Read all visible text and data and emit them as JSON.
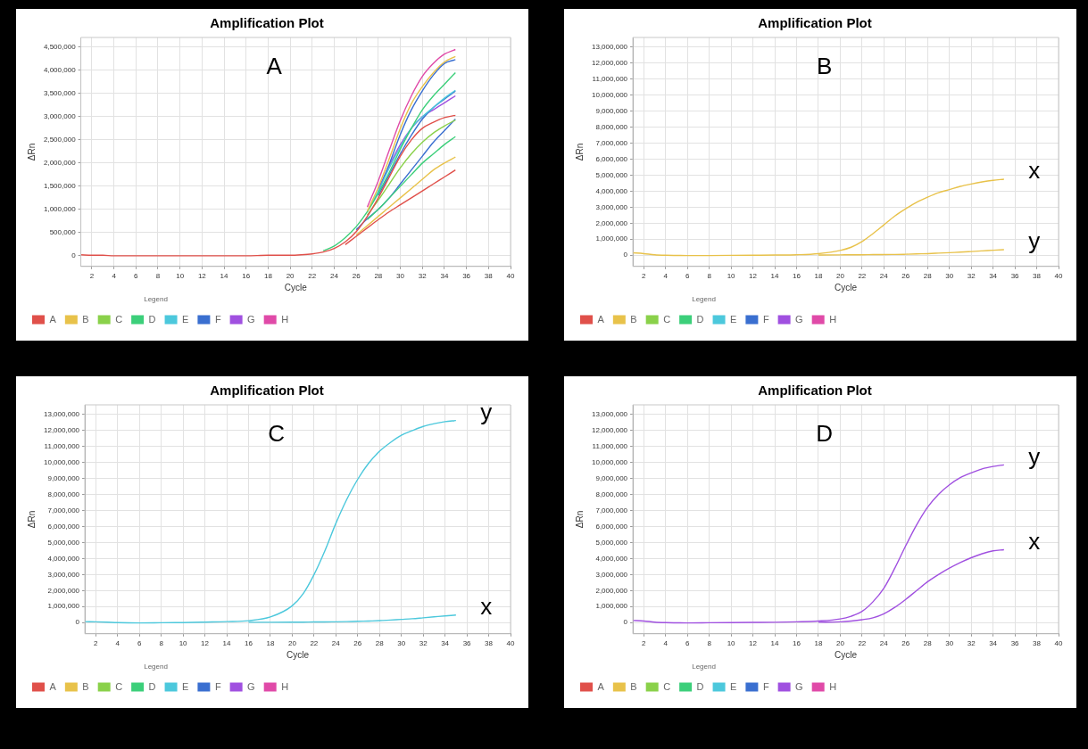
{
  "chart_data": [
    {
      "type": "line",
      "title": "Amplification Plot",
      "xlabel": "Cycle",
      "ylabel": "ΔRn",
      "legend_title": "Legend",
      "legend": "bottom",
      "grid": true,
      "x": [
        1,
        2,
        3,
        4,
        6,
        8,
        10,
        12,
        14,
        16,
        18,
        20,
        21,
        22,
        23,
        24,
        25,
        26,
        27,
        28,
        29,
        30,
        31,
        32,
        33,
        34,
        35
      ],
      "xlim": [
        1,
        40
      ],
      "xticks": [
        2,
        4,
        6,
        8,
        10,
        12,
        14,
        16,
        18,
        20,
        22,
        24,
        26,
        28,
        30,
        32,
        34,
        36,
        38,
        40
      ],
      "ylim": [
        -230000,
        4710000
      ],
      "yticks": [
        {
          "value": 0,
          "label": "0"
        },
        {
          "value": 500000,
          "label": "500,000"
        },
        {
          "value": 1000000,
          "label": "1,000,000"
        },
        {
          "value": 1500000,
          "label": "1,500,000"
        },
        {
          "value": 2000000,
          "label": "2,000,000"
        },
        {
          "value": 2500000,
          "label": "2,500,000"
        },
        {
          "value": 3000000,
          "label": "3,000,000"
        },
        {
          "value": 3500000,
          "label": "3,500,000"
        },
        {
          "value": 4000000,
          "label": "4,000,000"
        },
        {
          "value": 4500000,
          "label": "4,500,000"
        }
      ],
      "annotations": [
        "A"
      ],
      "series": [
        {
          "name": "A",
          "color": "#e0504a",
          "values": [
            20000,
            10000,
            10000,
            0,
            0,
            0,
            0,
            0,
            0,
            0,
            10000,
            10000,
            20000,
            40000,
            80000,
            160000,
            300000,
            520000,
            850000,
            1250000,
            1700000,
            2150000,
            2500000,
            2750000,
            2880000,
            2980000,
            3030000
          ]
        },
        {
          "color": "#e0504a",
          "values": [
            null,
            null,
            null,
            null,
            null,
            null,
            null,
            null,
            null,
            null,
            null,
            null,
            null,
            null,
            null,
            null,
            240000,
            420000,
            600000,
            780000,
            950000,
            1100000,
            1250000,
            1400000,
            1550000,
            1700000,
            1850000
          ]
        },
        {
          "name": "B",
          "color": "#e8c24a",
          "values": [
            null,
            null,
            null,
            null,
            null,
            null,
            null,
            null,
            null,
            null,
            null,
            null,
            null,
            null,
            null,
            null,
            null,
            null,
            960000,
            1480000,
            2100000,
            2750000,
            3280000,
            3650000,
            3950000,
            4180000,
            4300000
          ]
        },
        {
          "color": "#e8c24a",
          "values": [
            null,
            null,
            null,
            null,
            null,
            null,
            null,
            null,
            null,
            null,
            null,
            null,
            null,
            null,
            null,
            null,
            null,
            450000,
            650000,
            850000,
            1050000,
            1250000,
            1450000,
            1650000,
            1850000,
            2000000,
            2130000
          ]
        },
        {
          "name": "C",
          "color": "#8ad14a",
          "values": [
            null,
            null,
            null,
            null,
            null,
            null,
            null,
            null,
            null,
            null,
            null,
            null,
            null,
            null,
            null,
            null,
            null,
            null,
            880000,
            1200000,
            1550000,
            1900000,
            2200000,
            2450000,
            2650000,
            2800000,
            2930000
          ]
        },
        {
          "name": "D",
          "color": "#3ccf7a",
          "values": [
            null,
            null,
            null,
            null,
            null,
            null,
            null,
            null,
            null,
            null,
            null,
            null,
            null,
            null,
            110000,
            210000,
            390000,
            630000,
            950000,
            1350000,
            1800000,
            2300000,
            2750000,
            3150000,
            3450000,
            3700000,
            3950000
          ]
        },
        {
          "color": "#3ccf7a",
          "values": [
            null,
            null,
            null,
            null,
            null,
            null,
            null,
            null,
            null,
            null,
            null,
            null,
            null,
            null,
            null,
            null,
            null,
            null,
            780000,
            1000000,
            1250000,
            1500000,
            1750000,
            2000000,
            2200000,
            2400000,
            2570000
          ]
        },
        {
          "name": "E",
          "color": "#4cc8dc",
          "values": [
            null,
            null,
            null,
            null,
            null,
            null,
            null,
            null,
            null,
            null,
            null,
            null,
            null,
            null,
            null,
            null,
            null,
            null,
            950000,
            1400000,
            1900000,
            2350000,
            2750000,
            3000000,
            3200000,
            3400000,
            3570000
          ]
        },
        {
          "name": "F",
          "color": "#3a6fd0",
          "values": [
            null,
            null,
            null,
            null,
            null,
            null,
            null,
            null,
            null,
            null,
            null,
            null,
            null,
            null,
            null,
            null,
            null,
            null,
            null,
            1380000,
            1980000,
            2620000,
            3150000,
            3560000,
            3900000,
            4150000,
            4230000
          ]
        },
        {
          "color": "#3a6fd0",
          "values": [
            null,
            null,
            null,
            null,
            null,
            null,
            null,
            null,
            null,
            null,
            null,
            null,
            null,
            null,
            null,
            null,
            null,
            null,
            null,
            1300000,
            1750000,
            2200000,
            2600000,
            2950000,
            3200000,
            3380000,
            3550000
          ]
        },
        {
          "color": "#3a6fd0",
          "values": [
            null,
            null,
            null,
            null,
            null,
            null,
            null,
            null,
            null,
            null,
            null,
            null,
            null,
            null,
            null,
            null,
            null,
            560000,
            800000,
            1000000,
            1250000,
            1550000,
            1850000,
            2150000,
            2450000,
            2700000,
            2950000
          ]
        },
        {
          "name": "G",
          "color": "#a050e0",
          "values": [
            null,
            null,
            null,
            null,
            null,
            null,
            null,
            null,
            null,
            null,
            null,
            null,
            null,
            null,
            null,
            null,
            null,
            null,
            null,
            1450000,
            1950000,
            2400000,
            2750000,
            3000000,
            3150000,
            3300000,
            3450000
          ]
        },
        {
          "name": "H",
          "color": "#e04aa8",
          "values": [
            null,
            null,
            null,
            null,
            null,
            null,
            null,
            null,
            null,
            null,
            null,
            null,
            null,
            null,
            null,
            null,
            null,
            null,
            1050000,
            1620000,
            2280000,
            2920000,
            3450000,
            3870000,
            4150000,
            4350000,
            4450000
          ]
        }
      ]
    },
    {
      "type": "line",
      "title": "Amplification Plot",
      "xlabel": "Cycle",
      "ylabel": "ΔRn",
      "legend_title": "Legend",
      "legend": "bottom",
      "grid": true,
      "x": [
        1,
        2,
        3,
        4,
        6,
        8,
        10,
        12,
        14,
        16,
        18,
        20,
        21,
        22,
        23,
        24,
        25,
        26,
        27,
        28,
        29,
        30,
        31,
        32,
        33,
        34,
        35
      ],
      "xlim": [
        1,
        40
      ],
      "xticks": [
        2,
        4,
        6,
        8,
        10,
        12,
        14,
        16,
        18,
        20,
        22,
        24,
        26,
        28,
        30,
        32,
        34,
        36,
        38,
        40
      ],
      "ylim": [
        -700000,
        13600000
      ],
      "yticks": [
        {
          "value": 0,
          "label": "0"
        },
        {
          "value": 1000000,
          "label": "1,000,000"
        },
        {
          "value": 2000000,
          "label": "2,000,000"
        },
        {
          "value": 3000000,
          "label": "3,000,000"
        },
        {
          "value": 4000000,
          "label": "4,000,000"
        },
        {
          "value": 5000000,
          "label": "5,000,000"
        },
        {
          "value": 6000000,
          "label": "6,000,000"
        },
        {
          "value": 7000000,
          "label": "7,000,000"
        },
        {
          "value": 8000000,
          "label": "8,000,000"
        },
        {
          "value": 9000000,
          "label": "9,000,000"
        },
        {
          "value": 10000000,
          "label": "10,000,000"
        },
        {
          "value": 11000000,
          "label": "11,000,000"
        },
        {
          "value": 12000000,
          "label": "12,000,000"
        },
        {
          "value": 13000000,
          "label": "13,000,000"
        }
      ],
      "annotations": [
        "B"
      ],
      "series": [
        {
          "name": "A",
          "color": "#e0504a",
          "values": [
            null,
            null,
            null,
            null,
            null,
            null,
            null,
            null,
            null,
            null,
            null,
            null,
            null,
            null,
            null,
            null,
            null,
            null,
            null,
            null,
            null,
            null,
            null,
            null,
            null,
            null,
            null
          ]
        },
        {
          "name": "B",
          "color": "#e8c24a",
          "values": [
            null,
            null,
            null,
            null,
            null,
            null,
            null,
            null,
            null,
            null,
            null,
            null,
            null,
            null,
            null,
            null,
            null,
            null,
            null,
            null,
            null,
            null,
            null,
            null,
            null,
            null,
            null
          ]
        },
        {
          "name": "C",
          "color": "#8ad14a",
          "values": [
            null,
            null,
            null,
            null,
            null,
            null,
            null,
            null,
            null,
            null,
            null,
            null,
            null,
            null,
            null,
            null,
            null,
            null,
            null,
            null,
            null,
            null,
            null,
            null,
            null,
            null,
            null
          ]
        },
        {
          "name": "D",
          "color": "#3ccf7a",
          "values": [
            null,
            null,
            null,
            null,
            null,
            null,
            null,
            null,
            null,
            null,
            null,
            null,
            null,
            null,
            null,
            null,
            null,
            null,
            null,
            null,
            null,
            null,
            null,
            null,
            null,
            null,
            null
          ]
        },
        {
          "name": "E",
          "color": "#4cc8dc",
          "values": [
            null,
            null,
            null,
            null,
            null,
            null,
            null,
            null,
            null,
            null,
            null,
            null,
            null,
            null,
            null,
            null,
            null,
            null,
            null,
            null,
            null,
            null,
            null,
            null,
            null,
            null,
            null
          ]
        },
        {
          "name": "F",
          "color": "#3a6fd0",
          "values": [
            null,
            null,
            null,
            null,
            null,
            null,
            null,
            null,
            null,
            null,
            null,
            null,
            null,
            null,
            null,
            null,
            null,
            null,
            null,
            null,
            null,
            null,
            null,
            null,
            null,
            null,
            null
          ]
        },
        {
          "name": "G",
          "color": "#a050e0",
          "values": [
            null,
            null,
            null,
            null,
            null,
            null,
            null,
            null,
            null,
            null,
            null,
            null,
            null,
            null,
            null,
            null,
            null,
            null,
            null,
            null,
            null,
            null,
            null,
            null,
            null,
            null,
            null
          ]
        },
        {
          "name": "H",
          "color": "#e04aa8",
          "values": [
            null,
            null,
            null,
            null,
            null,
            null,
            null,
            null,
            null,
            null,
            null,
            null,
            null,
            null,
            null,
            null,
            null,
            null,
            null,
            null,
            null,
            null,
            null,
            null,
            null,
            null,
            null
          ]
        },
        {
          "name": "x",
          "color": "#e8c24a",
          "values": [
            150000,
            100000,
            30000,
            0,
            -20000,
            -20000,
            -10000,
            0,
            10000,
            30000,
            100000,
            300000,
            500000,
            850000,
            1350000,
            1900000,
            2450000,
            2900000,
            3300000,
            3620000,
            3900000,
            4100000,
            4300000,
            4450000,
            4580000,
            4680000,
            4750000
          ]
        },
        {
          "name": "y",
          "color": "#e8c24a",
          "values": [
            null,
            null,
            null,
            null,
            null,
            null,
            null,
            null,
            null,
            null,
            10000,
            20000,
            30000,
            30000,
            40000,
            40000,
            50000,
            60000,
            80000,
            100000,
            130000,
            160000,
            190000,
            230000,
            270000,
            310000,
            350000
          ]
        }
      ]
    },
    {
      "type": "line",
      "title": "Amplification Plot",
      "xlabel": "Cycle",
      "ylabel": "ΔRn",
      "legend_title": "Legend",
      "legend": "bottom",
      "grid": true,
      "x": [
        1,
        2,
        3,
        4,
        6,
        8,
        10,
        12,
        14,
        16,
        18,
        20,
        21,
        22,
        23,
        24,
        25,
        26,
        27,
        28,
        29,
        30,
        31,
        32,
        33,
        34,
        35
      ],
      "xlim": [
        1,
        40
      ],
      "xticks": [
        2,
        4,
        6,
        8,
        10,
        12,
        14,
        16,
        18,
        20,
        22,
        24,
        26,
        28,
        30,
        32,
        34,
        36,
        38,
        40
      ],
      "ylim": [
        -700000,
        13600000
      ],
      "yticks": [
        {
          "value": 0,
          "label": "0"
        },
        {
          "value": 1000000,
          "label": "1,000,000"
        },
        {
          "value": 2000000,
          "label": "2,000,000"
        },
        {
          "value": 3000000,
          "label": "3,000,000"
        },
        {
          "value": 4000000,
          "label": "4,000,000"
        },
        {
          "value": 5000000,
          "label": "5,000,000"
        },
        {
          "value": 6000000,
          "label": "6,000,000"
        },
        {
          "value": 7000000,
          "label": "7,000,000"
        },
        {
          "value": 8000000,
          "label": "8,000,000"
        },
        {
          "value": 9000000,
          "label": "9,000,000"
        },
        {
          "value": 10000000,
          "label": "10,000,000"
        },
        {
          "value": 11000000,
          "label": "11,000,000"
        },
        {
          "value": 12000000,
          "label": "12,000,000"
        },
        {
          "value": 13000000,
          "label": "13,000,000"
        }
      ],
      "annotations": [
        "C"
      ],
      "series": [
        {
          "name": "A",
          "color": "#e0504a",
          "values": [
            null,
            null,
            null,
            null,
            null,
            null,
            null,
            null,
            null,
            null,
            null,
            null,
            null,
            null,
            null,
            null,
            null,
            null,
            null,
            null,
            null,
            null,
            null,
            null,
            null,
            null,
            null
          ]
        },
        {
          "name": "B",
          "color": "#e8c24a",
          "values": [
            null,
            null,
            null,
            null,
            null,
            null,
            null,
            null,
            null,
            null,
            null,
            null,
            null,
            null,
            null,
            null,
            null,
            null,
            null,
            null,
            null,
            null,
            null,
            null,
            null,
            null,
            null
          ]
        },
        {
          "name": "C",
          "color": "#8ad14a",
          "values": [
            null,
            null,
            null,
            null,
            null,
            null,
            null,
            null,
            null,
            null,
            null,
            null,
            null,
            null,
            null,
            null,
            null,
            null,
            null,
            null,
            null,
            null,
            null,
            null,
            null,
            null,
            null
          ]
        },
        {
          "name": "D",
          "color": "#3ccf7a",
          "values": [
            null,
            null,
            null,
            null,
            null,
            null,
            null,
            null,
            null,
            null,
            null,
            null,
            null,
            null,
            null,
            null,
            null,
            null,
            null,
            null,
            null,
            null,
            null,
            null,
            null,
            null,
            null
          ]
        },
        {
          "name": "E",
          "color": "#4cc8dc",
          "values": [
            null,
            null,
            null,
            null,
            null,
            null,
            null,
            null,
            null,
            null,
            null,
            null,
            null,
            null,
            null,
            null,
            null,
            null,
            null,
            null,
            null,
            null,
            null,
            null,
            null,
            null,
            null
          ]
        },
        {
          "name": "F",
          "color": "#3a6fd0",
          "values": [
            null,
            null,
            null,
            null,
            null,
            null,
            null,
            null,
            null,
            null,
            null,
            null,
            null,
            null,
            null,
            null,
            null,
            null,
            null,
            null,
            null,
            null,
            null,
            null,
            null,
            null,
            null
          ]
        },
        {
          "name": "G",
          "color": "#a050e0",
          "values": [
            null,
            null,
            null,
            null,
            null,
            null,
            null,
            null,
            null,
            null,
            null,
            null,
            null,
            null,
            null,
            null,
            null,
            null,
            null,
            null,
            null,
            null,
            null,
            null,
            null,
            null,
            null
          ]
        },
        {
          "name": "H",
          "color": "#e04aa8",
          "values": [
            null,
            null,
            null,
            null,
            null,
            null,
            null,
            null,
            null,
            null,
            null,
            null,
            null,
            null,
            null,
            null,
            null,
            null,
            null,
            null,
            null,
            null,
            null,
            null,
            null,
            null,
            null
          ]
        },
        {
          "name": "y",
          "color": "#4cc8dc",
          "values": [
            60000,
            50000,
            30000,
            0,
            -20000,
            -10000,
            0,
            30000,
            60000,
            120000,
            350000,
            1050000,
            1800000,
            3000000,
            4500000,
            6200000,
            7700000,
            8950000,
            9950000,
            10700000,
            11250000,
            11700000,
            11990000,
            12250000,
            12420000,
            12550000,
            12620000
          ]
        },
        {
          "name": "x",
          "color": "#4cc8dc",
          "values": [
            null,
            null,
            null,
            null,
            null,
            null,
            null,
            null,
            null,
            20000,
            20000,
            30000,
            30000,
            40000,
            40000,
            50000,
            60000,
            80000,
            100000,
            120000,
            160000,
            200000,
            240000,
            300000,
            360000,
            420000,
            470000
          ]
        }
      ]
    },
    {
      "type": "line",
      "title": "Amplification Plot",
      "xlabel": "Cycle",
      "ylabel": "ΔRn",
      "legend_title": "Legend",
      "legend": "bottom",
      "grid": true,
      "x": [
        1,
        2,
        3,
        4,
        6,
        8,
        10,
        12,
        14,
        16,
        18,
        20,
        21,
        22,
        23,
        24,
        25,
        26,
        27,
        28,
        29,
        30,
        31,
        32,
        33,
        34,
        35
      ],
      "xlim": [
        1,
        40
      ],
      "xticks": [
        2,
        4,
        6,
        8,
        10,
        12,
        14,
        16,
        18,
        20,
        22,
        24,
        26,
        28,
        30,
        32,
        34,
        36,
        38,
        40
      ],
      "ylim": [
        -700000,
        13600000
      ],
      "yticks": [
        {
          "value": 0,
          "label": "0"
        },
        {
          "value": 1000000,
          "label": "1,000,000"
        },
        {
          "value": 2000000,
          "label": "2,000,000"
        },
        {
          "value": 3000000,
          "label": "3,000,000"
        },
        {
          "value": 4000000,
          "label": "4,000,000"
        },
        {
          "value": 5000000,
          "label": "5,000,000"
        },
        {
          "value": 6000000,
          "label": "6,000,000"
        },
        {
          "value": 7000000,
          "label": "7,000,000"
        },
        {
          "value": 8000000,
          "label": "8,000,000"
        },
        {
          "value": 9000000,
          "label": "9,000,000"
        },
        {
          "value": 10000000,
          "label": "10,000,000"
        },
        {
          "value": 11000000,
          "label": "11,000,000"
        },
        {
          "value": 12000000,
          "label": "12,000,000"
        },
        {
          "value": 13000000,
          "label": "13,000,000"
        }
      ],
      "annotations": [
        "D"
      ],
      "series": [
        {
          "name": "A",
          "color": "#e0504a",
          "values": [
            null,
            null,
            null,
            null,
            null,
            null,
            null,
            null,
            null,
            null,
            null,
            null,
            null,
            null,
            null,
            null,
            null,
            null,
            null,
            null,
            null,
            null,
            null,
            null,
            null,
            null,
            null
          ]
        },
        {
          "name": "B",
          "color": "#e8c24a",
          "values": [
            null,
            null,
            null,
            null,
            null,
            null,
            null,
            null,
            null,
            null,
            null,
            null,
            null,
            null,
            null,
            null,
            null,
            null,
            null,
            null,
            null,
            null,
            null,
            null,
            null,
            null,
            null
          ]
        },
        {
          "name": "C",
          "color": "#8ad14a",
          "values": [
            null,
            null,
            null,
            null,
            null,
            null,
            null,
            null,
            null,
            null,
            null,
            null,
            null,
            null,
            null,
            null,
            null,
            null,
            null,
            null,
            null,
            null,
            null,
            null,
            null,
            null,
            null
          ]
        },
        {
          "name": "D",
          "color": "#3ccf7a",
          "values": [
            null,
            null,
            null,
            null,
            null,
            null,
            null,
            null,
            null,
            null,
            null,
            null,
            null,
            null,
            null,
            null,
            null,
            null,
            null,
            null,
            null,
            null,
            null,
            null,
            null,
            null,
            null
          ]
        },
        {
          "name": "E",
          "color": "#4cc8dc",
          "values": [
            null,
            null,
            null,
            null,
            null,
            null,
            null,
            null,
            null,
            null,
            null,
            null,
            null,
            null,
            null,
            null,
            null,
            null,
            null,
            null,
            null,
            null,
            null,
            null,
            null,
            null,
            null
          ]
        },
        {
          "name": "F",
          "color": "#3a6fd0",
          "values": [
            null,
            null,
            null,
            null,
            null,
            null,
            null,
            null,
            null,
            null,
            null,
            null,
            null,
            null,
            null,
            null,
            null,
            null,
            null,
            null,
            null,
            null,
            null,
            null,
            null,
            null,
            null
          ]
        },
        {
          "name": "G",
          "color": "#a050e0",
          "values": [
            null,
            null,
            null,
            null,
            null,
            null,
            null,
            null,
            null,
            null,
            null,
            null,
            null,
            null,
            null,
            null,
            null,
            null,
            null,
            null,
            null,
            null,
            null,
            null,
            null,
            null,
            null
          ]
        },
        {
          "name": "H",
          "color": "#e04aa8",
          "values": [
            null,
            null,
            null,
            null,
            null,
            null,
            null,
            null,
            null,
            null,
            null,
            null,
            null,
            null,
            null,
            null,
            null,
            null,
            null,
            null,
            null,
            null,
            null,
            null,
            null,
            null,
            null
          ]
        },
        {
          "name": "y",
          "color": "#a050e0",
          "values": [
            130000,
            100000,
            30000,
            0,
            -20000,
            -10000,
            0,
            10000,
            20000,
            50000,
            100000,
            230000,
            400000,
            700000,
            1300000,
            2150000,
            3400000,
            4800000,
            6100000,
            7200000,
            8000000,
            8600000,
            9050000,
            9350000,
            9600000,
            9750000,
            9850000
          ]
        },
        {
          "name": "x",
          "color": "#a050e0",
          "values": [
            null,
            null,
            null,
            null,
            null,
            null,
            null,
            null,
            null,
            null,
            20000,
            50000,
            100000,
            180000,
            300000,
            550000,
            950000,
            1450000,
            2000000,
            2550000,
            3000000,
            3400000,
            3750000,
            4050000,
            4300000,
            4480000,
            4550000
          ]
        }
      ]
    }
  ]
}
